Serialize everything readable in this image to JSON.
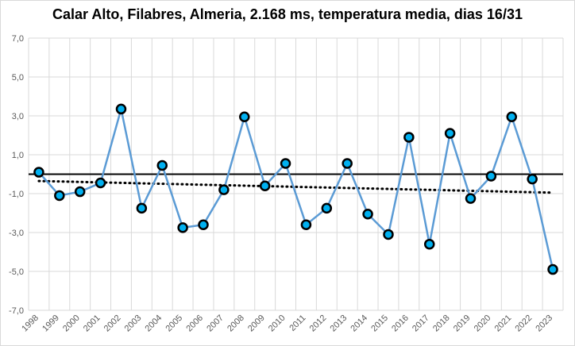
{
  "chart_data": {
    "type": "line",
    "title": "Calar Alto, Filabres, Almeria, 2.168 ms, temperatura media, dias 16/31",
    "xlabel": "",
    "ylabel": "",
    "ylim": [
      -7,
      7
    ],
    "y_ticks": [
      7,
      5,
      3,
      1,
      -1,
      -3,
      -5,
      -7
    ],
    "y_tick_labels": [
      "7,0",
      "5,0",
      "3,0",
      "1,0",
      "-1,0",
      "-3,0",
      "-5,0",
      "-7,0"
    ],
    "grid": "vertical and horizontal",
    "categories": [
      "1998",
      "1999",
      "2000",
      "2001",
      "2002",
      "2003",
      "2004",
      "2005",
      "2006",
      "2007",
      "2008",
      "2009",
      "2010",
      "2011",
      "2012",
      "2013",
      "2014",
      "2015",
      "2016",
      "2017",
      "2018",
      "2019",
      "2020",
      "2021",
      "2022",
      "2023"
    ],
    "series": [
      {
        "values": [
          0.1,
          -1.1,
          -0.9,
          -0.45,
          3.35,
          -1.75,
          0.45,
          -2.75,
          -2.6,
          -0.8,
          2.95,
          -0.6,
          0.55,
          -2.6,
          -1.75,
          0.55,
          -2.05,
          -3.1,
          1.9,
          -3.6,
          2.1,
          -1.25,
          -0.1,
          2.95,
          -0.25,
          -4.9
        ],
        "color": "#5b9bd5",
        "marker_fill": "#00b0f0"
      }
    ],
    "trendline": {
      "start": -0.35,
      "end": -0.95,
      "style": "dotted",
      "color": "#000000"
    },
    "reference_line": {
      "y": 0,
      "color": "#000000"
    }
  }
}
